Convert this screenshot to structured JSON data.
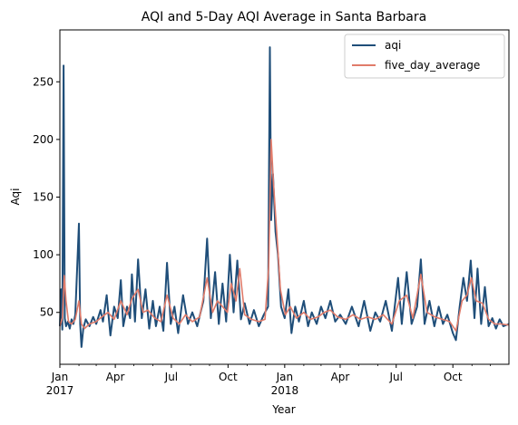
{
  "chart_data": {
    "type": "line",
    "title": "AQI and 5-Day AQI Average in Santa Barbara",
    "xlabel": "Year",
    "ylabel": "Aqi",
    "xlim": [
      "2017-01-01",
      "2018-12-31"
    ],
    "ylim": [
      5,
      295
    ],
    "y_ticks": [
      50,
      100,
      150,
      200,
      250
    ],
    "x_ticks": [
      {
        "date": "2017-01-01",
        "label": "Jan",
        "sublabel": "2017"
      },
      {
        "date": "2017-04-01",
        "label": "Apr",
        "sublabel": ""
      },
      {
        "date": "2017-07-01",
        "label": "Jul",
        "sublabel": ""
      },
      {
        "date": "2017-10-01",
        "label": "Oct",
        "sublabel": ""
      },
      {
        "date": "2018-01-01",
        "label": "Jan",
        "sublabel": "2018"
      },
      {
        "date": "2018-04-01",
        "label": "Apr",
        "sublabel": ""
      },
      {
        "date": "2018-07-01",
        "label": "Jul",
        "sublabel": ""
      },
      {
        "date": "2018-10-01",
        "label": "Oct",
        "sublabel": ""
      }
    ],
    "legend": {
      "position": "upper-right"
    },
    "grid": false,
    "series": [
      {
        "name": "aqi",
        "color": "#1f4e79",
        "points": [
          [
            "2017-01-01",
            38
          ],
          [
            "2017-01-03",
            70
          ],
          [
            "2017-01-05",
            35
          ],
          [
            "2017-01-07",
            264
          ],
          [
            "2017-01-09",
            45
          ],
          [
            "2017-01-11",
            38
          ],
          [
            "2017-01-14",
            42
          ],
          [
            "2017-01-17",
            36
          ],
          [
            "2017-01-20",
            44
          ],
          [
            "2017-01-23",
            40
          ],
          [
            "2017-01-26",
            48
          ],
          [
            "2017-02-01",
            127
          ],
          [
            "2017-02-03",
            40
          ],
          [
            "2017-02-05",
            20
          ],
          [
            "2017-02-08",
            36
          ],
          [
            "2017-02-12",
            44
          ],
          [
            "2017-02-18",
            38
          ],
          [
            "2017-02-24",
            46
          ],
          [
            "2017-03-01",
            40
          ],
          [
            "2017-03-08",
            52
          ],
          [
            "2017-03-12",
            42
          ],
          [
            "2017-03-18",
            65
          ],
          [
            "2017-03-24",
            30
          ],
          [
            "2017-03-30",
            55
          ],
          [
            "2017-04-05",
            45
          ],
          [
            "2017-04-10",
            78
          ],
          [
            "2017-04-14",
            38
          ],
          [
            "2017-04-20",
            55
          ],
          [
            "2017-04-25",
            45
          ],
          [
            "2017-04-28",
            83
          ],
          [
            "2017-05-03",
            42
          ],
          [
            "2017-05-08",
            96
          ],
          [
            "2017-05-14",
            45
          ],
          [
            "2017-05-20",
            70
          ],
          [
            "2017-05-26",
            36
          ],
          [
            "2017-06-01",
            60
          ],
          [
            "2017-06-06",
            38
          ],
          [
            "2017-06-12",
            55
          ],
          [
            "2017-06-18",
            34
          ],
          [
            "2017-06-24",
            93
          ],
          [
            "2017-06-30",
            40
          ],
          [
            "2017-07-06",
            55
          ],
          [
            "2017-07-12",
            32
          ],
          [
            "2017-07-20",
            65
          ],
          [
            "2017-07-28",
            40
          ],
          [
            "2017-08-04",
            50
          ],
          [
            "2017-08-12",
            38
          ],
          [
            "2017-08-22",
            60
          ],
          [
            "2017-08-28",
            114
          ],
          [
            "2017-09-03",
            45
          ],
          [
            "2017-09-10",
            85
          ],
          [
            "2017-09-16",
            40
          ],
          [
            "2017-09-22",
            75
          ],
          [
            "2017-09-28",
            42
          ],
          [
            "2017-10-04",
            100
          ],
          [
            "2017-10-10",
            50
          ],
          [
            "2017-10-16",
            95
          ],
          [
            "2017-10-22",
            44
          ],
          [
            "2017-10-28",
            58
          ],
          [
            "2017-11-05",
            40
          ],
          [
            "2017-11-12",
            52
          ],
          [
            "2017-11-20",
            38
          ],
          [
            "2017-11-28",
            48
          ],
          [
            "2017-12-05",
            55
          ],
          [
            "2017-12-08",
            280
          ],
          [
            "2017-12-10",
            130
          ],
          [
            "2017-12-13",
            170
          ],
          [
            "2017-12-17",
            120
          ],
          [
            "2017-12-21",
            100
          ],
          [
            "2017-12-26",
            55
          ],
          [
            "2018-01-01",
            45
          ],
          [
            "2018-01-07",
            70
          ],
          [
            "2018-01-12",
            32
          ],
          [
            "2018-01-18",
            55
          ],
          [
            "2018-01-24",
            42
          ],
          [
            "2018-02-01",
            60
          ],
          [
            "2018-02-08",
            38
          ],
          [
            "2018-02-14",
            50
          ],
          [
            "2018-02-22",
            40
          ],
          [
            "2018-03-01",
            55
          ],
          [
            "2018-03-08",
            45
          ],
          [
            "2018-03-16",
            60
          ],
          [
            "2018-03-24",
            42
          ],
          [
            "2018-04-01",
            48
          ],
          [
            "2018-04-10",
            40
          ],
          [
            "2018-04-20",
            55
          ],
          [
            "2018-05-01",
            38
          ],
          [
            "2018-05-10",
            60
          ],
          [
            "2018-05-20",
            34
          ],
          [
            "2018-05-28",
            50
          ],
          [
            "2018-06-05",
            42
          ],
          [
            "2018-06-14",
            60
          ],
          [
            "2018-06-24",
            34
          ],
          [
            "2018-07-04",
            80
          ],
          [
            "2018-07-10",
            40
          ],
          [
            "2018-07-18",
            85
          ],
          [
            "2018-07-26",
            40
          ],
          [
            "2018-08-04",
            55
          ],
          [
            "2018-08-10",
            96
          ],
          [
            "2018-08-16",
            40
          ],
          [
            "2018-08-24",
            60
          ],
          [
            "2018-09-01",
            38
          ],
          [
            "2018-09-08",
            55
          ],
          [
            "2018-09-15",
            40
          ],
          [
            "2018-09-22",
            48
          ],
          [
            "2018-10-01",
            32
          ],
          [
            "2018-10-06",
            26
          ],
          [
            "2018-10-12",
            55
          ],
          [
            "2018-10-18",
            80
          ],
          [
            "2018-10-24",
            60
          ],
          [
            "2018-10-30",
            95
          ],
          [
            "2018-11-05",
            45
          ],
          [
            "2018-11-10",
            88
          ],
          [
            "2018-11-16",
            40
          ],
          [
            "2018-11-22",
            72
          ],
          [
            "2018-11-28",
            38
          ],
          [
            "2018-12-04",
            45
          ],
          [
            "2018-12-10",
            36
          ],
          [
            "2018-12-16",
            44
          ],
          [
            "2018-12-22",
            38
          ],
          [
            "2018-12-31",
            40
          ]
        ]
      },
      {
        "name": "five_day_average",
        "color": "#e07b6a",
        "points": [
          [
            "2017-01-01",
            38
          ],
          [
            "2017-01-05",
            45
          ],
          [
            "2017-01-08",
            82
          ],
          [
            "2017-01-11",
            60
          ],
          [
            "2017-01-15",
            42
          ],
          [
            "2017-01-20",
            40
          ],
          [
            "2017-01-26",
            44
          ],
          [
            "2017-02-01",
            60
          ],
          [
            "2017-02-05",
            40
          ],
          [
            "2017-02-10",
            36
          ],
          [
            "2017-02-18",
            40
          ],
          [
            "2017-03-01",
            42
          ],
          [
            "2017-03-10",
            46
          ],
          [
            "2017-03-20",
            50
          ],
          [
            "2017-03-30",
            44
          ],
          [
            "2017-04-10",
            60
          ],
          [
            "2017-04-20",
            48
          ],
          [
            "2017-04-28",
            62
          ],
          [
            "2017-05-08",
            70
          ],
          [
            "2017-05-16",
            50
          ],
          [
            "2017-05-24",
            52
          ],
          [
            "2017-06-04",
            45
          ],
          [
            "2017-06-14",
            42
          ],
          [
            "2017-06-24",
            65
          ],
          [
            "2017-07-04",
            45
          ],
          [
            "2017-07-14",
            40
          ],
          [
            "2017-07-24",
            48
          ],
          [
            "2017-08-04",
            42
          ],
          [
            "2017-08-16",
            46
          ],
          [
            "2017-08-28",
            80
          ],
          [
            "2017-09-06",
            50
          ],
          [
            "2017-09-14",
            60
          ],
          [
            "2017-09-22",
            55
          ],
          [
            "2017-09-30",
            50
          ],
          [
            "2017-10-06",
            75
          ],
          [
            "2017-10-14",
            60
          ],
          [
            "2017-10-20",
            88
          ],
          [
            "2017-10-28",
            48
          ],
          [
            "2017-11-08",
            44
          ],
          [
            "2017-11-20",
            42
          ],
          [
            "2017-11-30",
            44
          ],
          [
            "2017-12-06",
            90
          ],
          [
            "2017-12-10",
            200
          ],
          [
            "2017-12-14",
            160
          ],
          [
            "2017-12-19",
            120
          ],
          [
            "2017-12-25",
            70
          ],
          [
            "2018-01-02",
            48
          ],
          [
            "2018-01-10",
            55
          ],
          [
            "2018-01-20",
            45
          ],
          [
            "2018-02-01",
            50
          ],
          [
            "2018-02-12",
            44
          ],
          [
            "2018-02-24",
            46
          ],
          [
            "2018-03-06",
            50
          ],
          [
            "2018-03-16",
            52
          ],
          [
            "2018-03-28",
            46
          ],
          [
            "2018-04-10",
            44
          ],
          [
            "2018-04-22",
            48
          ],
          [
            "2018-05-04",
            44
          ],
          [
            "2018-05-16",
            46
          ],
          [
            "2018-05-28",
            44
          ],
          [
            "2018-06-10",
            48
          ],
          [
            "2018-06-24",
            40
          ],
          [
            "2018-07-06",
            60
          ],
          [
            "2018-07-18",
            65
          ],
          [
            "2018-07-28",
            45
          ],
          [
            "2018-08-10",
            83
          ],
          [
            "2018-08-20",
            50
          ],
          [
            "2018-09-02",
            46
          ],
          [
            "2018-09-14",
            44
          ],
          [
            "2018-09-26",
            42
          ],
          [
            "2018-10-06",
            34
          ],
          [
            "2018-10-16",
            60
          ],
          [
            "2018-10-24",
            65
          ],
          [
            "2018-10-31",
            80
          ],
          [
            "2018-11-08",
            60
          ],
          [
            "2018-11-18",
            58
          ],
          [
            "2018-11-28",
            44
          ],
          [
            "2018-12-08",
            40
          ],
          [
            "2018-12-18",
            40
          ],
          [
            "2018-12-31",
            39
          ]
        ]
      }
    ]
  }
}
